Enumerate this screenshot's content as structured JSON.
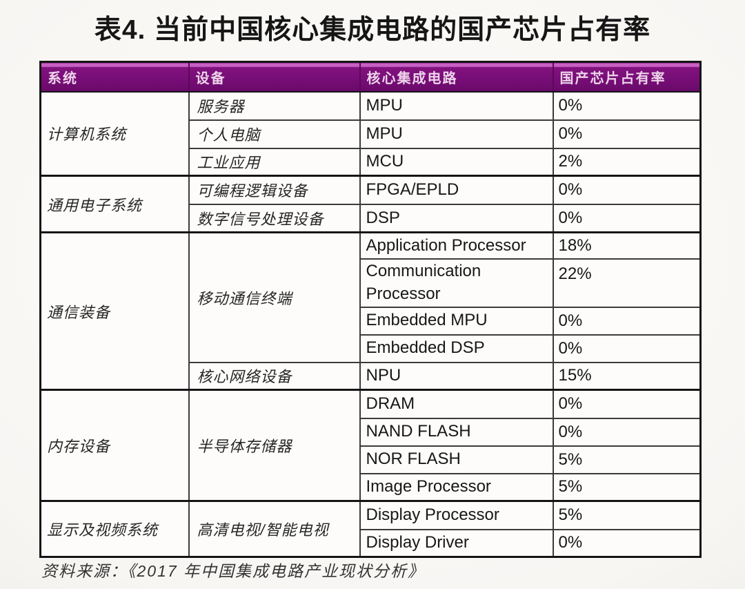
{
  "title": "表4. 当前中国核心集成电路的国产芯片占有率",
  "source": "资料来源：《2017 年中国集成电路产业现状分析》",
  "colors": {
    "header_bg": "#760d76",
    "header_highlight": "#c75fc2",
    "header_text": "#eed4ea",
    "inner_border": "#3a3a3a",
    "section_border": "#141414",
    "cell_bg": "#fdfcfa"
  },
  "table": {
    "headers": [
      "系统",
      "设备",
      "核心集成电路",
      "国产芯片占有率"
    ],
    "rows": [
      {
        "system": "计算机系统",
        "device": "服务器",
        "circuit": "MPU",
        "share": "0%"
      },
      {
        "device": "个人电脑",
        "circuit": "MPU",
        "share": "0%"
      },
      {
        "device": "工业应用",
        "circuit": "MCU",
        "share": "2%"
      },
      {
        "system": "通用电子系统",
        "device": "可编程逻辑设备",
        "circuit": "FPGA/EPLD",
        "share": "0%"
      },
      {
        "device": "数字信号处理设备",
        "circuit": "DSP",
        "share": "0%"
      },
      {
        "system": "通信装备",
        "device": "移动通信终端",
        "circuit": "Application Processor",
        "share": "18%"
      },
      {
        "circuit": "Communication Processor",
        "share": "22%"
      },
      {
        "circuit": "Embedded MPU",
        "share": "0%"
      },
      {
        "circuit": "Embedded DSP",
        "share": "0%"
      },
      {
        "device": "核心网络设备",
        "circuit": "NPU",
        "share": "15%"
      },
      {
        "system": "内存设备",
        "device": "半导体存储器",
        "circuit": "DRAM",
        "share": "0%"
      },
      {
        "circuit": "NAND FLASH",
        "share": "0%"
      },
      {
        "circuit": "NOR FLASH",
        "share": "5%"
      },
      {
        "circuit": "Image Processor",
        "share": "5%"
      },
      {
        "system": "显示及视频系统",
        "device": "高清电视/智能电视",
        "circuit": "Display Processor",
        "share": "5%"
      },
      {
        "circuit": "Display Driver",
        "share": "0%"
      }
    ]
  }
}
